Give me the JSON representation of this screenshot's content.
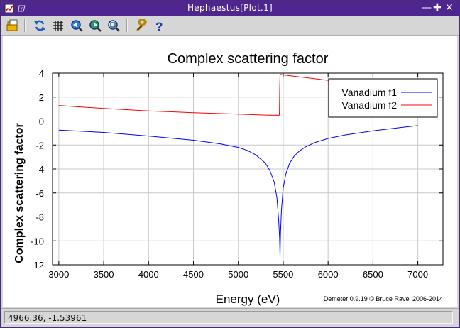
{
  "window": {
    "title": "Hephaestus[Plot.1]",
    "controls": [
      "minimize-icon",
      "maximize-icon",
      "close-icon"
    ]
  },
  "toolbar": {
    "tools": [
      {
        "name": "open-icon"
      },
      {
        "name": "refresh-icon"
      },
      {
        "name": "grid-icon"
      },
      {
        "name": "zoom-back-icon"
      },
      {
        "name": "zoom-forward-icon"
      },
      {
        "name": "zoom-reset-icon"
      },
      {
        "name": "wrench-icon"
      },
      {
        "name": "help-icon"
      }
    ]
  },
  "status": {
    "coordinates": "4966.36, -1.53961"
  },
  "chart_data": {
    "type": "line",
    "title": "Complex scattering factor",
    "xlabel": "Energy (eV)",
    "ylabel": "Complex scattering factor",
    "xlim": [
      2930,
      7280
    ],
    "ylim": [
      -12,
      4
    ],
    "xticks": [
      3000,
      3500,
      4000,
      4500,
      5000,
      5500,
      6000,
      6500,
      7000
    ],
    "yticks": [
      -12,
      -10,
      -8,
      -6,
      -4,
      -2,
      0,
      2,
      4
    ],
    "grid": true,
    "legend_position": "top-right",
    "footer": "Demeter 0.9.19 © Bruce Ravel 2006-2014",
    "edge_energy": 5465,
    "series": [
      {
        "name": "Vanadium f1",
        "color": "#0000ff",
        "x": [
          3000,
          3500,
          4000,
          4500,
          4800,
          5000,
          5100,
          5200,
          5300,
          5350,
          5400,
          5430,
          5450,
          5460,
          5465,
          5470,
          5480,
          5500,
          5530,
          5570,
          5620,
          5680,
          5750,
          5850,
          6000,
          6200,
          6500,
          6800,
          7000
        ],
        "y": [
          -0.75,
          -0.95,
          -1.25,
          -1.6,
          -1.9,
          -2.2,
          -2.45,
          -2.85,
          -3.5,
          -4.1,
          -5.1,
          -6.4,
          -8.3,
          -9.8,
          -11.3,
          -9.5,
          -7.5,
          -5.6,
          -4.4,
          -3.55,
          -2.95,
          -2.5,
          -2.15,
          -1.8,
          -1.45,
          -1.15,
          -0.82,
          -0.55,
          -0.38
        ]
      },
      {
        "name": "Vanadium f2",
        "color": "#ff0000",
        "x": [
          3000,
          3500,
          4000,
          4500,
          5000,
          5300,
          5455,
          5458,
          5462,
          5465,
          5500,
          6000,
          6500,
          7000
        ],
        "y": [
          1.3,
          1.05,
          0.85,
          0.7,
          0.58,
          0.5,
          0.48,
          0.7,
          3.0,
          3.9,
          3.85,
          3.4,
          3.0,
          2.65
        ]
      }
    ]
  }
}
